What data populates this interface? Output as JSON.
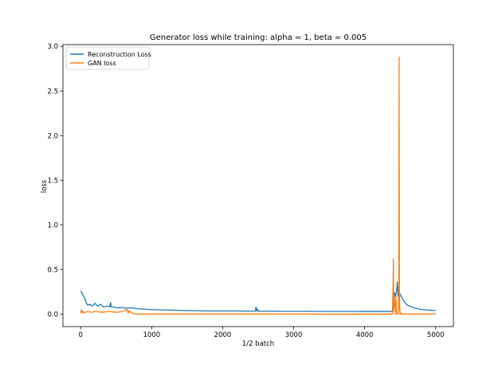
{
  "chart_data": {
    "type": "line",
    "title": "Generator loss while training: alpha = 1, beta = 0.005",
    "xlabel": "1/2 batch",
    "ylabel": "loss",
    "xlim": [
      -250,
      5250
    ],
    "ylim": [
      -0.14,
      3.02
    ],
    "xticks": [
      0,
      1000,
      2000,
      3000,
      4000,
      5000
    ],
    "xtick_labels": [
      "0",
      "1000",
      "2000",
      "3000",
      "4000",
      "5000"
    ],
    "yticks": [
      0.0,
      0.5,
      1.0,
      1.5,
      2.0,
      2.5,
      3.0
    ],
    "ytick_labels": [
      "0.0",
      "0.5",
      "1.0",
      "1.5",
      "2.0",
      "2.5",
      "3.0"
    ],
    "grid": false,
    "legend_position": "top-left",
    "series": [
      {
        "name": "Reconstruction Loss",
        "color": "#1f77b4",
        "x": [
          0,
          20,
          40,
          60,
          80,
          100,
          130,
          160,
          200,
          240,
          280,
          320,
          370,
          410,
          420,
          430,
          470,
          520,
          580,
          640,
          700,
          760,
          800,
          900,
          1000,
          1200,
          1500,
          1800,
          2000,
          2200,
          2400,
          2460,
          2470,
          2480,
          2490,
          2500,
          2600,
          2800,
          3000,
          3200,
          3500,
          3800,
          4000,
          4200,
          4350,
          4400,
          4410,
          4420,
          4430,
          4440,
          4450,
          4460,
          4470,
          4480,
          4500,
          4550,
          4600,
          4700,
          4800,
          4900,
          5000
        ],
        "y": [
          0.26,
          0.23,
          0.2,
          0.17,
          0.12,
          0.1,
          0.11,
          0.09,
          0.12,
          0.09,
          0.11,
          0.08,
          0.09,
          0.08,
          0.13,
          0.08,
          0.08,
          0.07,
          0.075,
          0.065,
          0.07,
          0.065,
          0.06,
          0.055,
          0.05,
          0.045,
          0.04,
          0.035,
          0.035,
          0.035,
          0.033,
          0.033,
          0.08,
          0.033,
          0.055,
          0.033,
          0.033,
          0.032,
          0.032,
          0.032,
          0.031,
          0.031,
          0.03,
          0.03,
          0.03,
          0.03,
          0.14,
          0.24,
          0.2,
          0.22,
          0.26,
          0.36,
          0.2,
          0.26,
          0.22,
          0.15,
          0.1,
          0.07,
          0.05,
          0.045,
          0.04
        ]
      },
      {
        "name": "GAN loss",
        "color": "#ff7f0e",
        "x": [
          0,
          10,
          20,
          30,
          40,
          60,
          100,
          150,
          200,
          300,
          400,
          500,
          600,
          650,
          670,
          680,
          700,
          750,
          800,
          1000,
          2000,
          3000,
          4000,
          4350,
          4390,
          4400,
          4405,
          4410,
          4420,
          4430,
          4440,
          4450,
          4460,
          4470,
          4480,
          4485,
          4490,
          4495,
          4500,
          4510,
          4520,
          4600,
          5000
        ],
        "y": [
          0.01,
          0.05,
          0.02,
          0.03,
          0.01,
          0.02,
          0.03,
          0.02,
          0.03,
          0.02,
          0.03,
          0.02,
          0.03,
          0.05,
          0.01,
          0.04,
          0.02,
          0.005,
          0.0,
          0.0,
          0.0,
          0.0,
          0.0,
          0.0,
          0.0,
          0.3,
          0.62,
          0.1,
          0.16,
          0.0,
          0.2,
          0.0,
          0.0,
          0.0,
          0.05,
          2.88,
          0.2,
          0.05,
          0.0,
          0.01,
          0.0,
          0.0,
          0.0
        ]
      }
    ]
  }
}
